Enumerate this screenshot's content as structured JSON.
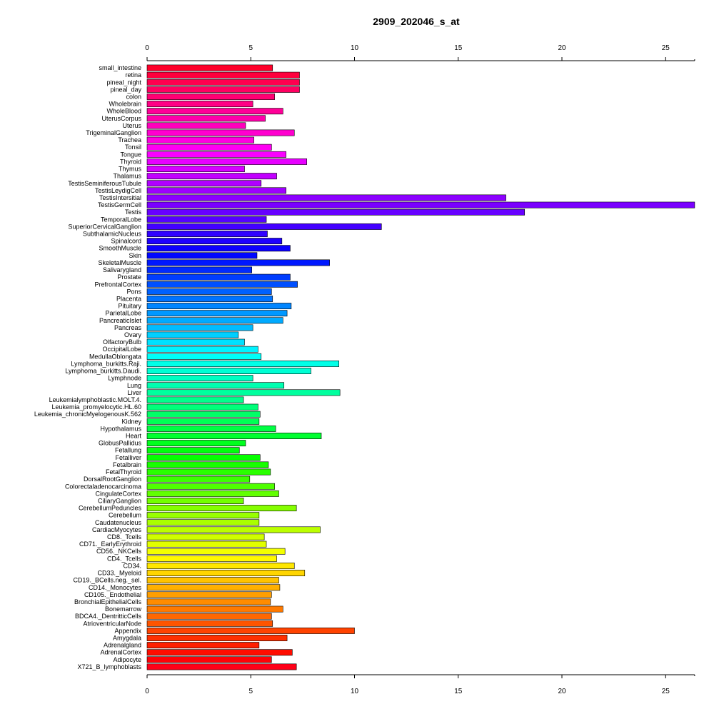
{
  "chart_data": {
    "type": "bar",
    "orientation": "horizontal",
    "title": "2909_202046_s_at",
    "xlabel": "",
    "ylabel": "",
    "xlim": [
      0,
      26.4
    ],
    "xticks": [
      0,
      5,
      10,
      15,
      20,
      25
    ],
    "grid": false,
    "legend": "none",
    "color_scheme": "rainbow",
    "categories": [
      "small_intestine",
      "retina",
      "pineal_night",
      "pineal_day",
      "colon",
      "Wholebrain",
      "WholeBlood",
      "UterusCorpus",
      "Uterus",
      "TrigeminalGanglion",
      "Trachea",
      "Tonsil",
      "Tongue",
      "Thyroid",
      "Thymus",
      "Thalamus",
      "TestisSeminiferousTubule",
      "TestisLeydigCell",
      "TestisIntersitial",
      "TestisGermCell",
      "Testis",
      "TemporalLobe",
      "SuperiorCervicalGanglion",
      "SubthalamicNucleus",
      "Spinalcord",
      "SmoothMuscle",
      "Skin",
      "SkeletalMuscle",
      "Salivarygland",
      "Prostate",
      "PrefrontalCortex",
      "Pons",
      "Placenta",
      "Pituitary",
      "ParietalLobe",
      "PancreaticIslet",
      "Pancreas",
      "Ovary",
      "OlfactoryBulb",
      "OccipitalLobe",
      "MedullaOblongata",
      "Lymphoma_burkitts.Raji.",
      "Lymphoma_burkitts.Daudi.",
      "Lymphnode",
      "Lung",
      "Liver",
      "Leukemialymphoblastic.MOLT.4.",
      "Leukemia_promyelocytic.HL.60",
      "Leukemia_chronicMyelogenousK.562",
      "Kidney",
      "Hypothalamus",
      "Heart",
      "GlobusPallidus",
      "Fetallung",
      "Fetalliver",
      "Fetalbrain",
      "FetalThyroid",
      "DorsalRootGanglion",
      "Colorectaladenocarcinoma",
      "CingulateCortex",
      "CiliaryGanglion",
      "CerebellumPeduncles",
      "Cerebellum",
      "Caudatenucleus",
      "CardiacMyocytes",
      "CD8._Tcells",
      "CD71._EarlyErythroid",
      "CD56._NKCells",
      "CD4._Tcells",
      "CD34.",
      "CD33._Myeloid",
      "CD19._BCells.neg._sel.",
      "CD14._Monocytes",
      "CD105._Endothelial",
      "BronchialEpithelialCells",
      "Bonemarrow",
      "BDCA4._DentritticCells",
      "AtrioventricularNode",
      "Appendix",
      "Amygdala",
      "Adrenalgland",
      "AdrenalCortex",
      "Adipocyte",
      "X721_B_lymphoblasts"
    ],
    "values": [
      6.05,
      7.35,
      7.35,
      7.35,
      6.15,
      5.1,
      6.55,
      5.7,
      4.75,
      7.1,
      5.15,
      6.0,
      6.7,
      7.7,
      4.7,
      6.25,
      5.5,
      6.7,
      17.3,
      26.4,
      18.2,
      5.75,
      11.3,
      5.8,
      6.5,
      6.9,
      5.3,
      8.8,
      5.05,
      6.9,
      7.25,
      6.0,
      6.05,
      6.95,
      6.75,
      6.55,
      5.1,
      4.4,
      4.7,
      5.35,
      5.5,
      9.25,
      7.9,
      5.1,
      6.6,
      9.3,
      4.65,
      5.35,
      5.45,
      5.4,
      6.2,
      8.4,
      4.75,
      4.45,
      5.45,
      5.85,
      5.95,
      4.95,
      6.15,
      6.35,
      4.65,
      7.2,
      5.4,
      5.4,
      8.35,
      5.65,
      5.75,
      6.65,
      6.25,
      7.1,
      7.6,
      6.35,
      6.4,
      6.0,
      5.95,
      6.55,
      6.0,
      6.05,
      10.0,
      6.75,
      5.4,
      7.0,
      6.0,
      7.2
    ]
  }
}
